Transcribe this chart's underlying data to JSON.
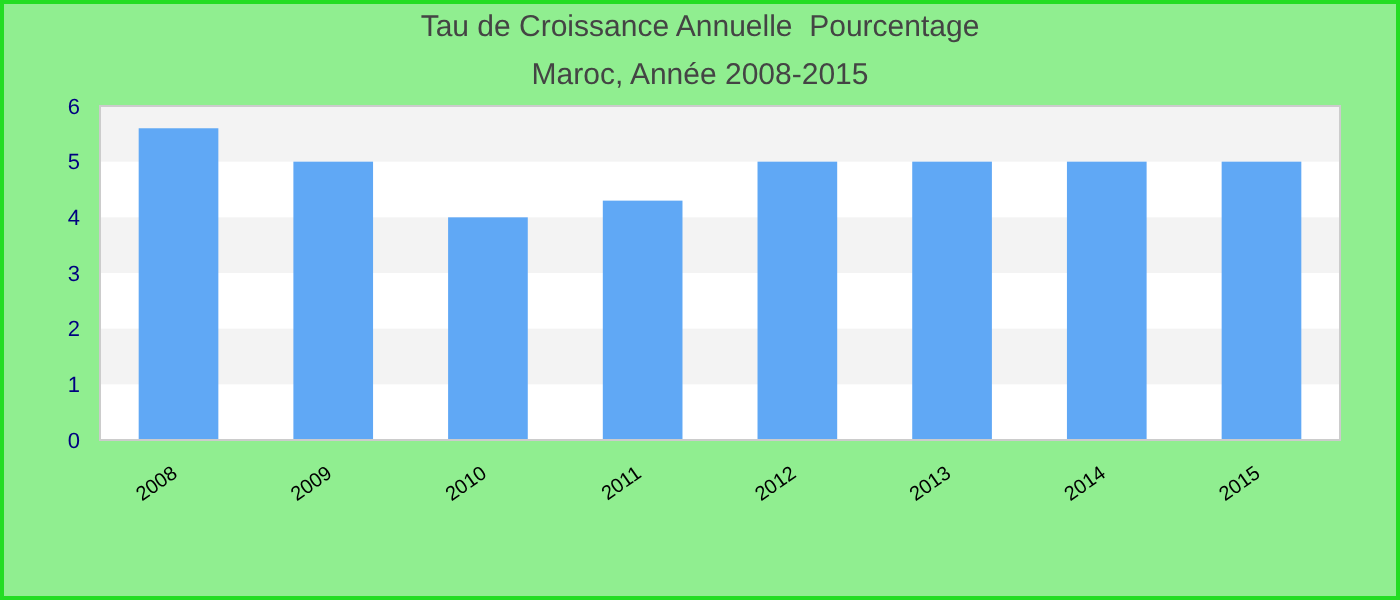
{
  "chart_data": {
    "type": "bar",
    "title": "Tau de Croissance Annuelle  Pourcentage",
    "subtitle": "Maroc, Année 2008-2015",
    "categories": [
      "2008",
      "2009",
      "2010",
      "2011",
      "2012",
      "2013",
      "2014",
      "2015"
    ],
    "values": [
      5.6,
      5.0,
      4.0,
      4.3,
      5.0,
      5.0,
      5.0,
      5.0
    ],
    "color": "#60a8f5",
    "ylim": [
      0,
      6
    ],
    "yticks": [
      0,
      1,
      2,
      3,
      4,
      5,
      6
    ],
    "bands": [
      {
        "axis": "y",
        "from": 1,
        "to": 2,
        "color": "#f3f3f3"
      },
      {
        "axis": "y",
        "from": 3,
        "to": 4,
        "color": "#f3f3f3"
      },
      {
        "axis": "y",
        "from": 5,
        "to": 6,
        "color": "#f3f3f3"
      }
    ]
  }
}
